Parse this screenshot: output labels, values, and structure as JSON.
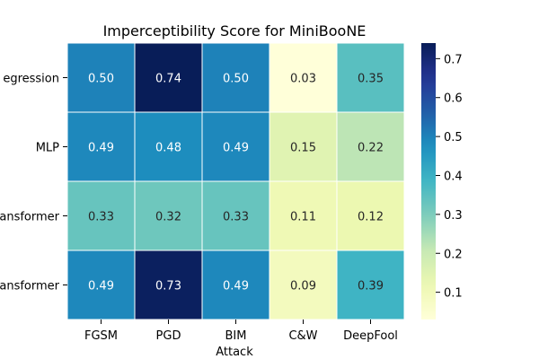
{
  "chart_data": {
    "type": "heatmap",
    "title": "Imperceptibility Score for MiniBooNE",
    "xlabel": "Attack",
    "ylabel": "",
    "x_categories": [
      "FGSM",
      "PGD",
      "BIM",
      "C&W",
      "DeepFool"
    ],
    "y_categories": [
      "egression",
      "MLP",
      "ansformer",
      "ansformer"
    ],
    "values": [
      [
        0.5,
        0.74,
        0.5,
        0.03,
        0.35
      ],
      [
        0.49,
        0.48,
        0.49,
        0.15,
        0.22
      ],
      [
        0.33,
        0.32,
        0.33,
        0.11,
        0.12
      ],
      [
        0.49,
        0.73,
        0.49,
        0.09,
        0.39
      ]
    ],
    "value_labels": [
      [
        "0.50",
        "0.74",
        "0.50",
        "0.03",
        "0.35"
      ],
      [
        "0.49",
        "0.48",
        "0.49",
        "0.15",
        "0.22"
      ],
      [
        "0.33",
        "0.32",
        "0.33",
        "0.11",
        "0.12"
      ],
      [
        "0.49",
        "0.73",
        "0.49",
        "0.09",
        "0.39"
      ]
    ],
    "colormap": "YlGnBu",
    "vmin": 0.03,
    "vmax": 0.74,
    "colorbar_ticks": [
      0.1,
      0.2,
      0.3,
      0.4,
      0.5,
      0.6,
      0.7
    ],
    "colorbar_tick_labels": [
      "0.1",
      "0.2",
      "0.3",
      "0.4",
      "0.5",
      "0.6",
      "0.7"
    ],
    "colorbar_position": "right",
    "grid": false
  }
}
